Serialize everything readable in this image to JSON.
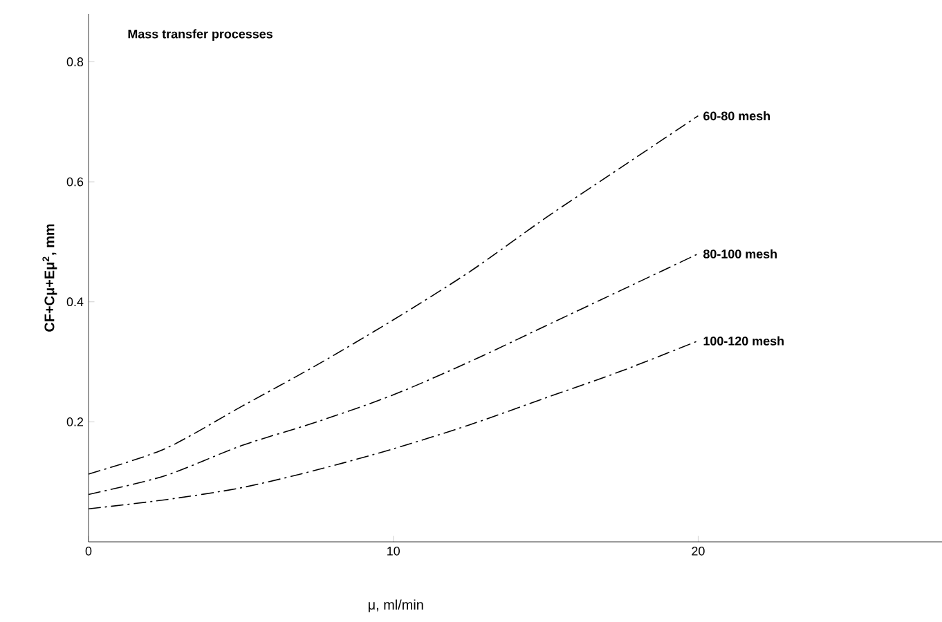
{
  "chart_data": {
    "type": "line",
    "title": "Mass transfer processes",
    "xlabel": "μ,  ml/min",
    "ylabel": "CF+Cμ+Eμ$^{2}$, mm",
    "x": [
      0,
      2.5,
      5,
      7.5,
      10,
      12.5,
      15,
      17.5,
      20
    ],
    "series": [
      {
        "name": "60-80 mesh",
        "color": "#000000",
        "values": [
          0.113,
          0.155,
          0.225,
          0.295,
          0.37,
          0.45,
          0.54,
          0.625,
          0.71
        ]
      },
      {
        "name": "80-100 mesh",
        "color": "#000000",
        "values": [
          0.079,
          0.11,
          0.16,
          0.2,
          0.245,
          0.3,
          0.36,
          0.42,
          0.48
        ]
      },
      {
        "name": "100-120 mesh",
        "color": "#000000",
        "values": [
          0.055,
          0.07,
          0.09,
          0.12,
          0.155,
          0.195,
          0.24,
          0.285,
          0.335
        ]
      }
    ],
    "xlim": [
      0,
      28
    ],
    "ylim": [
      0,
      0.88
    ],
    "xticks": [
      0,
      10,
      20
    ],
    "yticks": [
      0.2,
      0.4,
      0.6,
      0.8
    ],
    "grid": false,
    "legend": false,
    "marker": "none",
    "line_style": "dashdot"
  }
}
